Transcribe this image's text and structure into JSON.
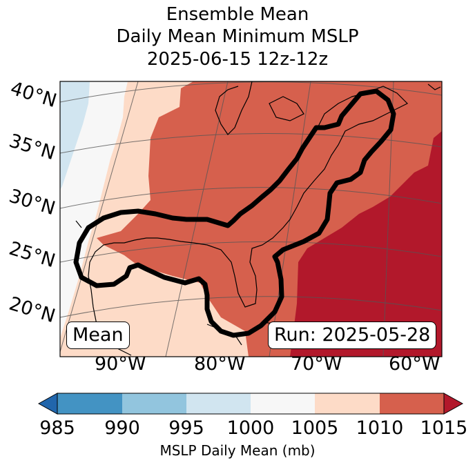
{
  "title": {
    "line1": "Ensemble Mean",
    "line2": "Daily Mean Minimum MSLP",
    "line3": "2025-06-15 12z-12z"
  },
  "map": {
    "lat_labels": [
      "40°N",
      "35°N",
      "30°N",
      "25°N",
      "20°N"
    ],
    "lon_labels": [
      "90°W",
      "80°W",
      "70°W",
      "60°W"
    ],
    "mean_label": "Mean",
    "run_label": "Run: 2025-05-28",
    "colors": {
      "c995_1000": "#d1e5f0",
      "c1000_1005": "#f7f7f7",
      "c1005_1010": "#fddbc7",
      "c1010_1015": "#d6604d",
      "c_over_1015": "#b2182b",
      "contour": "#000000"
    }
  },
  "colorbar": {
    "ticks": [
      "985",
      "990",
      "995",
      "1000",
      "1005",
      "1010",
      "1015"
    ],
    "segment_colors": [
      "#4393c3",
      "#92c5de",
      "#d1e5f0",
      "#f7f7f7",
      "#fddbc7",
      "#d6604d"
    ],
    "under_color": "#2166ac",
    "over_color": "#b2182b",
    "label": "MSLP Daily Mean (mb)"
  }
}
